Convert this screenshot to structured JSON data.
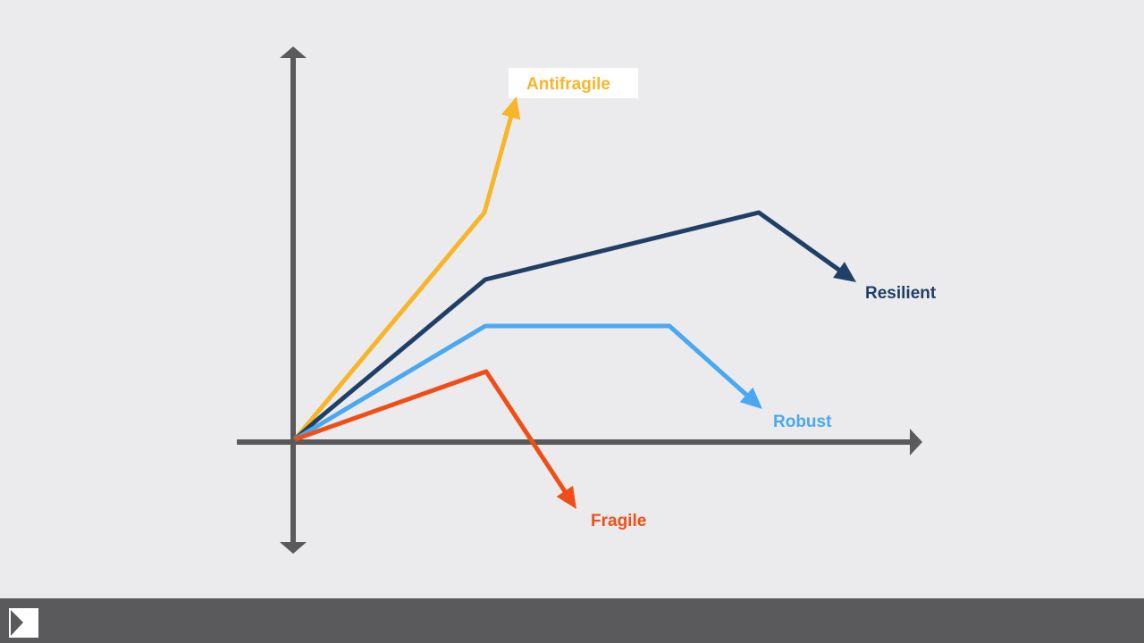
{
  "curves": [
    {
      "label": "Antifragile",
      "color": "#f7b52a"
    },
    {
      "label": "Resilient",
      "color": "#1f3f66"
    },
    {
      "label": "Robust",
      "color": "#4aa8f0"
    },
    {
      "label": "Fragile",
      "color": "#f04e16"
    }
  ]
}
